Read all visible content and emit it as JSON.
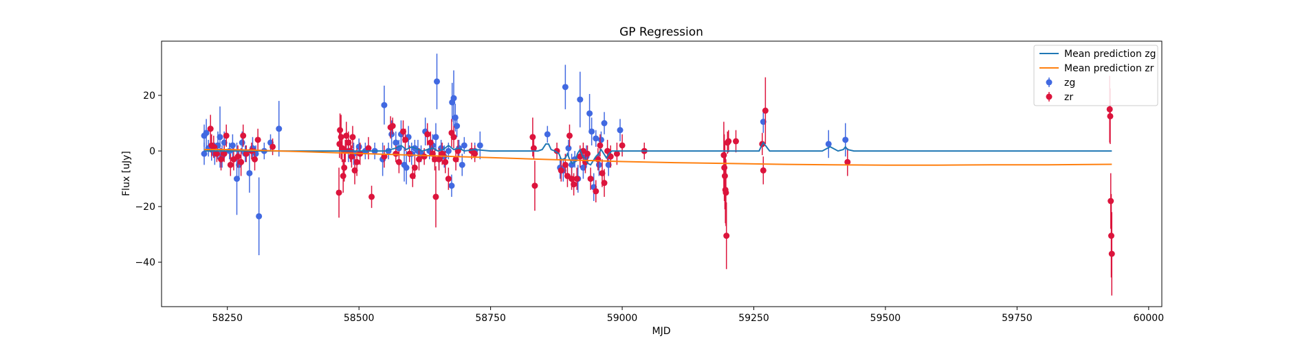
{
  "chart_data": {
    "type": "scatter",
    "title": "GP Regression",
    "xlabel": "MJD",
    "ylabel": "Flux [uJy]",
    "xlim": [
      58125,
      60025
    ],
    "ylim": [
      -56,
      39.5
    ],
    "xticks": [
      58250,
      58500,
      58750,
      59000,
      59250,
      59500,
      59750,
      60000
    ],
    "yticks": [
      -40,
      -20,
      0,
      20
    ],
    "grid": false,
    "legend_position": "top-right",
    "colors": {
      "zg_points": "#4169e1",
      "zr_points": "#dc143c",
      "mean_zg": "#1f77b4",
      "mean_zr": "#ff7f0e"
    },
    "legend": [
      {
        "label": "Mean prediction zg",
        "kind": "line",
        "color": "#1f77b4"
      },
      {
        "label": "Mean prediction zr",
        "kind": "line",
        "color": "#ff7f0e"
      },
      {
        "label": "zg",
        "kind": "errorbar",
        "color": "#4169e1"
      },
      {
        "label": "zr",
        "kind": "errorbar",
        "color": "#dc143c"
      }
    ],
    "series": [
      {
        "name": "zg",
        "points": [
          [
            58206,
            5.5,
            4
          ],
          [
            58206,
            -1,
            4
          ],
          [
            58210,
            6.5,
            5
          ],
          [
            58214,
            1,
            3
          ],
          [
            58220,
            0.5,
            4
          ],
          [
            58226,
            -1,
            4
          ],
          [
            58232,
            2,
            5
          ],
          [
            58236,
            5,
            11
          ],
          [
            58240,
            -2,
            4
          ],
          [
            58244,
            3,
            4
          ],
          [
            58254,
            0,
            3
          ],
          [
            58260,
            2,
            4
          ],
          [
            58268,
            -10,
            13
          ],
          [
            58272,
            -5,
            5
          ],
          [
            58278,
            3,
            4
          ],
          [
            58284,
            -1,
            3
          ],
          [
            58292,
            -8,
            7
          ],
          [
            58298,
            1,
            4
          ],
          [
            58304,
            -1,
            3
          ],
          [
            58310,
            -23.5,
            14
          ],
          [
            58320,
            0,
            3
          ],
          [
            58332,
            3,
            3
          ],
          [
            58348,
            8,
            10
          ],
          [
            58480,
            0,
            4
          ],
          [
            58490,
            -1,
            4
          ],
          [
            58500,
            1.5,
            3
          ],
          [
            58512,
            0,
            3
          ],
          [
            58530,
            0,
            3
          ],
          [
            58545,
            -3,
            6
          ],
          [
            58548,
            16.5,
            7
          ],
          [
            58556,
            0,
            3
          ],
          [
            58562,
            6,
            5
          ],
          [
            58570,
            3,
            4
          ],
          [
            58576,
            1,
            3
          ],
          [
            58580,
            6,
            5
          ],
          [
            58586,
            -5,
            6
          ],
          [
            58590,
            -6,
            6
          ],
          [
            58594,
            5,
            4
          ],
          [
            58600,
            -1,
            4
          ],
          [
            58606,
            1,
            3
          ],
          [
            58612,
            0,
            4
          ],
          [
            58618,
            -1,
            3
          ],
          [
            58626,
            7,
            5
          ],
          [
            58634,
            0,
            3
          ],
          [
            58640,
            2,
            4
          ],
          [
            58646,
            5,
            5
          ],
          [
            58648,
            25,
            10
          ],
          [
            58652,
            -3,
            4
          ],
          [
            58656,
            1,
            3
          ],
          [
            58662,
            -2,
            4
          ],
          [
            58670,
            0,
            3
          ],
          [
            58676,
            -12.5,
            4
          ],
          [
            58677,
            17.5,
            7
          ],
          [
            58680,
            19,
            10
          ],
          [
            58683,
            12,
            5
          ],
          [
            58686,
            9,
            4
          ],
          [
            58690,
            1,
            3
          ],
          [
            58696,
            -5,
            4
          ],
          [
            58700,
            2,
            3
          ],
          [
            58720,
            0,
            3
          ],
          [
            58730,
            2,
            5
          ],
          [
            58858,
            6,
            3
          ],
          [
            58882,
            -6,
            4
          ],
          [
            58888,
            -7,
            4
          ],
          [
            58892,
            23,
            8
          ],
          [
            58898,
            1,
            3
          ],
          [
            58904,
            -5,
            4
          ],
          [
            58910,
            -3,
            3
          ],
          [
            58916,
            -10,
            5
          ],
          [
            58920,
            18.5,
            10
          ],
          [
            58926,
            -6,
            4
          ],
          [
            58932,
            -2,
            4
          ],
          [
            58938,
            13.5,
            7
          ],
          [
            58942,
            7,
            5
          ],
          [
            58946,
            -13,
            5
          ],
          [
            58950,
            4.5,
            3
          ],
          [
            58956,
            -5,
            4
          ],
          [
            58960,
            4,
            3
          ],
          [
            58966,
            10,
            4
          ],
          [
            58974,
            -5,
            4
          ],
          [
            58996,
            7.5,
            4
          ],
          [
            59268,
            10.5,
            4
          ],
          [
            59392,
            2.5,
            5
          ],
          [
            59424,
            4,
            6
          ]
        ]
      },
      {
        "name": "zr",
        "points": [
          [
            58218,
            8,
            5
          ],
          [
            58220,
            2,
            4
          ],
          [
            58224,
            1.5,
            4
          ],
          [
            58230,
            -1,
            3
          ],
          [
            58238,
            -3,
            4
          ],
          [
            58244,
            -1,
            3
          ],
          [
            58248,
            5.5,
            4
          ],
          [
            58256,
            -5,
            4
          ],
          [
            58262,
            -3,
            4
          ],
          [
            58270,
            -2,
            4
          ],
          [
            58276,
            -4,
            5
          ],
          [
            58280,
            5.5,
            4
          ],
          [
            58286,
            -1,
            3
          ],
          [
            58296,
            0,
            3
          ],
          [
            58302,
            -3,
            4
          ],
          [
            58308,
            4,
            4
          ],
          [
            58336,
            1.5,
            3
          ],
          [
            58462,
            -15,
            9
          ],
          [
            58463,
            2.5,
            5
          ],
          [
            58464,
            7.5,
            6
          ],
          [
            58466,
            5,
            8
          ],
          [
            58468,
            1,
            5
          ],
          [
            58470,
            -9,
            6
          ],
          [
            58472,
            -6,
            5
          ],
          [
            58474,
            0,
            4
          ],
          [
            58476,
            5.5,
            5
          ],
          [
            58480,
            3,
            4
          ],
          [
            58484,
            0,
            4
          ],
          [
            58486,
            -2,
            4
          ],
          [
            58488,
            5,
            4
          ],
          [
            58492,
            -7,
            5
          ],
          [
            58496,
            -4,
            5
          ],
          [
            58502,
            -1,
            4
          ],
          [
            58518,
            1,
            4
          ],
          [
            58524,
            -16.5,
            4
          ],
          [
            58548,
            -2,
            4
          ],
          [
            58560,
            8.5,
            4
          ],
          [
            58564,
            9,
            3
          ],
          [
            58570,
            -1,
            3
          ],
          [
            58576,
            -4,
            4
          ],
          [
            58584,
            7,
            4
          ],
          [
            58588,
            4,
            4
          ],
          [
            58596,
            -1,
            3
          ],
          [
            58602,
            -9,
            4
          ],
          [
            58606,
            -6,
            4
          ],
          [
            58614,
            -3,
            4
          ],
          [
            58624,
            -2,
            3
          ],
          [
            58630,
            6,
            4
          ],
          [
            58636,
            3,
            4
          ],
          [
            58640,
            -1,
            3
          ],
          [
            58644,
            -3,
            4
          ],
          [
            58646,
            -16.5,
            11
          ],
          [
            58652,
            -3,
            4
          ],
          [
            58658,
            -1,
            4
          ],
          [
            58664,
            -4,
            4
          ],
          [
            58670,
            -10,
            4
          ],
          [
            58676,
            6.5,
            5
          ],
          [
            58680,
            5,
            4
          ],
          [
            58684,
            -3,
            4
          ],
          [
            58688,
            0,
            4
          ],
          [
            58714,
            0,
            3
          ],
          [
            58720,
            -1,
            3
          ],
          [
            58830,
            5,
            7
          ],
          [
            58832,
            1,
            4
          ],
          [
            58834,
            -12.5,
            9
          ],
          [
            58876,
            0,
            3
          ],
          [
            58884,
            -7,
            4
          ],
          [
            58892,
            -5,
            4
          ],
          [
            58896,
            -9,
            4
          ],
          [
            58900,
            5.5,
            4
          ],
          [
            58904,
            -10,
            4
          ],
          [
            58908,
            -12,
            4
          ],
          [
            58914,
            -10,
            4
          ],
          [
            58920,
            -2,
            4
          ],
          [
            58926,
            0,
            3
          ],
          [
            58930,
            -4,
            4
          ],
          [
            58934,
            -1,
            3
          ],
          [
            58940,
            -10,
            4
          ],
          [
            58950,
            -14.5,
            4
          ],
          [
            58954,
            -3,
            4
          ],
          [
            58958,
            2,
            4
          ],
          [
            58962,
            -8,
            5
          ],
          [
            58966,
            -11.5,
            5
          ],
          [
            58972,
            0,
            4
          ],
          [
            58978,
            -2,
            4
          ],
          [
            58990,
            -1,
            4
          ],
          [
            59000,
            2,
            4
          ],
          [
            59042,
            0,
            3
          ],
          [
            59193,
            -1.5,
            12
          ],
          [
            59194,
            -6,
            12
          ],
          [
            59195,
            -9,
            12
          ],
          [
            59196,
            -14,
            12
          ],
          [
            59197,
            -15,
            12
          ],
          [
            59198,
            -30.5,
            12
          ],
          [
            59200,
            3,
            4
          ],
          [
            59202,
            3.5,
            4
          ],
          [
            59216,
            3.5,
            4
          ],
          [
            59266,
            2.5,
            4
          ],
          [
            59268,
            -7,
            5
          ],
          [
            59272,
            14.5,
            12
          ],
          [
            59428,
            -4,
            5
          ],
          [
            59926,
            15,
            12
          ],
          [
            59927,
            12.5,
            10
          ],
          [
            59928,
            -18,
            10
          ],
          [
            59929,
            -30.5,
            15
          ],
          [
            59930,
            -37,
            15
          ]
        ]
      }
    ],
    "mean_prediction_zg": {
      "name": "Mean prediction zg",
      "x": [
        58206,
        58300,
        58400,
        58450,
        58500,
        58550,
        58570,
        58580,
        58590,
        58600,
        58620,
        58640,
        58650,
        58660,
        58670,
        58680,
        58690,
        58700,
        58720,
        58750,
        58840,
        58848,
        58855,
        58860,
        58865,
        58872,
        58880,
        58884,
        58888,
        58892,
        58896,
        58900,
        58905,
        58910,
        58915,
        58920,
        58925,
        58930,
        58935,
        58940,
        58945,
        58950,
        58955,
        58960,
        58965,
        58970,
        58975,
        58980,
        58990,
        59000,
        59050,
        59150,
        59260,
        59265,
        59268,
        59272,
        59280,
        59300,
        59380,
        59390,
        59395,
        59400,
        59410,
        59420,
        59424,
        59428,
        59440,
        59500,
        59600,
        59750,
        59930
      ],
      "y": [
        0,
        0,
        0,
        0,
        0,
        0,
        1,
        2,
        0.5,
        1.5,
        0,
        1,
        0,
        0.5,
        2,
        0.5,
        1,
        0,
        0.5,
        0,
        0,
        0.5,
        2.5,
        2.5,
        0.5,
        0,
        -1,
        -3,
        -3,
        -2.5,
        -1,
        -3,
        -4.5,
        -4,
        -1,
        0.5,
        -2,
        -3,
        -4.5,
        -5,
        -3.5,
        -2,
        -1,
        0.5,
        -1,
        -2.5,
        -1,
        0,
        0,
        0,
        0,
        0,
        0,
        2,
        3,
        2,
        0,
        0,
        0,
        1,
        1.5,
        1,
        0,
        0.5,
        1.5,
        0.5,
        0,
        0,
        0,
        0,
        0
      ]
    },
    "mean_prediction_zr": {
      "name": "Mean prediction zr",
      "x": [
        58206,
        58250,
        58300,
        58350,
        58400,
        58450,
        58500,
        58550,
        58600,
        58650,
        58700,
        58750,
        58800,
        58850,
        58900,
        58950,
        59000,
        59100,
        59200,
        59300,
        59400,
        59500,
        59600,
        59700,
        59800,
        59930
      ],
      "y": [
        0.5,
        0.5,
        0.3,
        0,
        -0.3,
        -0.6,
        -0.9,
        -1.2,
        -1.5,
        -1.8,
        -2.1,
        -2.4,
        -2.7,
        -3.0,
        -3.3,
        -3.5,
        -3.8,
        -4.2,
        -4.5,
        -4.8,
        -5.0,
        -5.1,
        -5.1,
        -5.0,
        -5.0,
        -4.8
      ]
    }
  }
}
